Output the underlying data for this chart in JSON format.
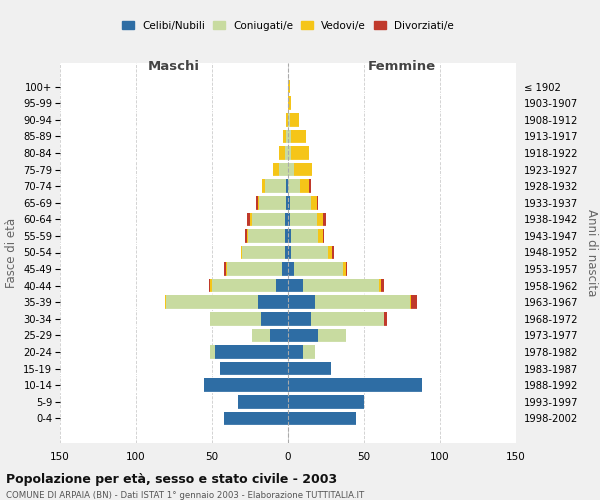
{
  "age_groups": [
    "0-4",
    "5-9",
    "10-14",
    "15-19",
    "20-24",
    "25-29",
    "30-34",
    "35-39",
    "40-44",
    "45-49",
    "50-54",
    "55-59",
    "60-64",
    "65-69",
    "70-74",
    "75-79",
    "80-84",
    "85-89",
    "90-94",
    "95-99",
    "100+"
  ],
  "birth_years": [
    "1998-2002",
    "1993-1997",
    "1988-1992",
    "1983-1987",
    "1978-1982",
    "1973-1977",
    "1968-1972",
    "1963-1967",
    "1958-1962",
    "1953-1957",
    "1948-1952",
    "1943-1947",
    "1938-1942",
    "1933-1937",
    "1928-1932",
    "1923-1927",
    "1918-1922",
    "1913-1917",
    "1908-1912",
    "1903-1907",
    "≤ 1902"
  ],
  "maschi": {
    "celibi": [
      42,
      33,
      55,
      45,
      48,
      12,
      18,
      20,
      8,
      4,
      2,
      2,
      2,
      1,
      1,
      0,
      0,
      0,
      0,
      0,
      0
    ],
    "coniugati": [
      0,
      0,
      0,
      0,
      3,
      12,
      33,
      60,
      42,
      36,
      28,
      24,
      22,
      18,
      14,
      6,
      2,
      1,
      0,
      0,
      0
    ],
    "vedovi": [
      0,
      0,
      0,
      0,
      0,
      0,
      0,
      1,
      1,
      1,
      1,
      1,
      1,
      1,
      2,
      4,
      4,
      2,
      1,
      0,
      0
    ],
    "divorziati": [
      0,
      0,
      0,
      0,
      0,
      0,
      0,
      0,
      1,
      1,
      0,
      1,
      2,
      1,
      0,
      0,
      0,
      0,
      0,
      0,
      0
    ]
  },
  "femmine": {
    "nubili": [
      45,
      50,
      88,
      28,
      10,
      20,
      15,
      18,
      10,
      4,
      2,
      2,
      1,
      1,
      0,
      0,
      0,
      0,
      0,
      0,
      0
    ],
    "coniugate": [
      0,
      0,
      0,
      0,
      8,
      18,
      48,
      62,
      50,
      32,
      24,
      18,
      18,
      14,
      8,
      4,
      2,
      2,
      1,
      0,
      0
    ],
    "vedove": [
      0,
      0,
      0,
      0,
      0,
      0,
      0,
      1,
      1,
      2,
      3,
      3,
      4,
      4,
      6,
      12,
      12,
      10,
      6,
      2,
      1
    ],
    "divorziate": [
      0,
      0,
      0,
      0,
      0,
      0,
      2,
      4,
      2,
      1,
      1,
      1,
      2,
      1,
      1,
      0,
      0,
      0,
      0,
      0,
      0
    ]
  },
  "color_celibi": "#2e6da4",
  "color_coniugati": "#c8dba0",
  "color_vedovi": "#f5c518",
  "color_divorziati": "#c0392b",
  "xlim": 150,
  "title": "Popolazione per età, sesso e stato civile - 2003",
  "subtitle": "COMUNE DI ARPAIA (BN) - Dati ISTAT 1° gennaio 2003 - Elaborazione TUTTITALIA.IT",
  "ylabel_left": "Fasce di età",
  "ylabel_right": "Anni di nascita",
  "xlabel_maschi": "Maschi",
  "xlabel_femmine": "Femmine",
  "bg_color": "#f0f0f0",
  "plot_bg": "#ffffff"
}
